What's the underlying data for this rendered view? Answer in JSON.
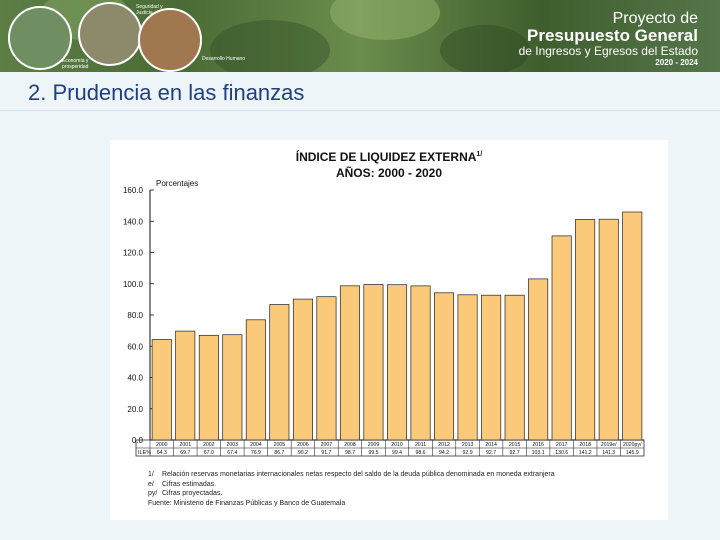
{
  "banner": {
    "circles": [
      "Economía y prosperidad",
      "Seguridad y Justicia",
      "Desarrollo Humano"
    ],
    "brand": {
      "line1": "Proyecto de",
      "line2": "Presupuesto General",
      "line3": "de Ingresos y Egresos del Estado",
      "line4": "2020 - 2024"
    }
  },
  "slide_title": "2. Prudencia en las finanzas",
  "chart_data": {
    "type": "bar",
    "title": "ÍNDICE DE LIQUIDEZ EXTERNA",
    "title_sup": "1/",
    "subtitle": "AÑOS: 2000 - 2020",
    "ylabel": "Porcentajes",
    "xlabel": "",
    "ylim": [
      0,
      160
    ],
    "yticks": [
      "0.0",
      "20.0",
      "40.0",
      "60.0",
      "80.0",
      "100.0",
      "120.0",
      "140.0",
      "160.0"
    ],
    "categories": [
      "2000",
      "2001",
      "2002",
      "2003",
      "2004",
      "2005",
      "2006",
      "2007",
      "2008",
      "2009",
      "2010",
      "2011",
      "2012",
      "2013",
      "2014",
      "2015",
      "2016",
      "2017",
      "2018",
      "2019e/",
      "2020py/"
    ],
    "values": [
      64.3,
      69.7,
      67.0,
      67.4,
      76.9,
      86.7,
      90.2,
      91.7,
      98.7,
      99.5,
      99.4,
      98.6,
      94.2,
      92.9,
      92.7,
      92.7,
      103.1,
      130.6,
      141.2,
      141.3,
      145.9
    ],
    "table_row_label": "ILE%",
    "value_labels": [
      "64.3",
      "69.7",
      "67.0",
      "67.4",
      "76.9",
      "86.7",
      "90.2",
      "91.7",
      "98.7",
      "99.5",
      "99.4",
      "98.6",
      "94.2",
      "92.9",
      "92.7",
      "92.7",
      "103.1",
      "130.6",
      "141.2",
      "141.3",
      "145.9"
    ],
    "bar_color": "#fbc97a",
    "bar_stroke": "#222222"
  },
  "notes": [
    {
      "tag": "1/",
      "text": "Relación reservas monetarias internacionales netas respecto del saldo de la deuda pública denominada en moneda extranjera"
    },
    {
      "tag": "e/",
      "text": "Cifras estimadas."
    },
    {
      "tag": "py/",
      "text": "Cifras proyectadas."
    },
    {
      "tag": "",
      "text": "Fuente: Ministerio de Finanzas Públicas y Banco de Guatemala"
    }
  ]
}
